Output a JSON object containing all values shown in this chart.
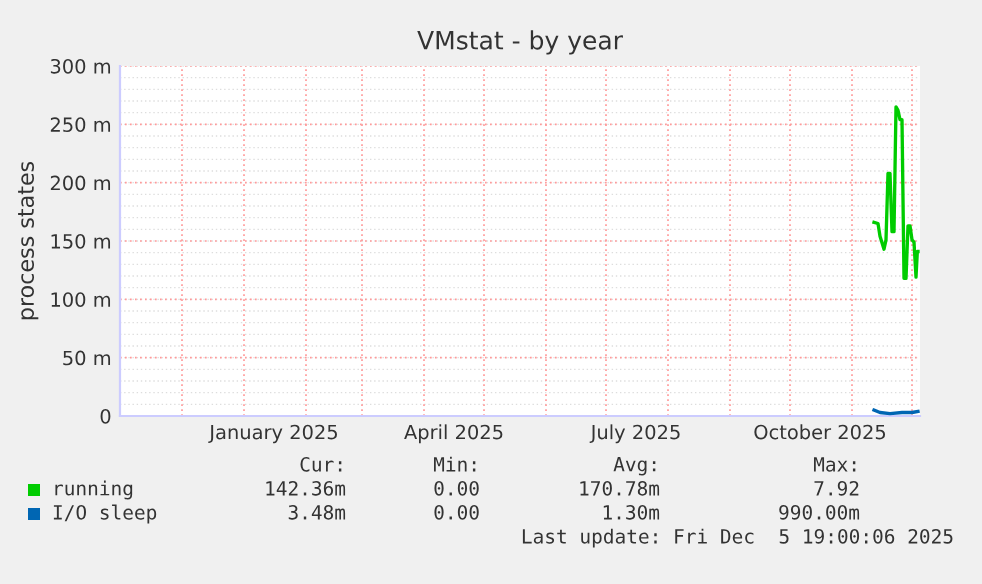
{
  "chart_data": {
    "type": "line",
    "title": "VMstat - by year",
    "ylabel": "process states",
    "xlim": [
      "2024-10-31",
      "2025-12-05"
    ],
    "xticks": [
      {
        "value": "2024-12-01",
        "label": null
      },
      {
        "value": "2025-01-01",
        "label": null
      },
      {
        "value": "2025-01-16",
        "label": "January 2025"
      },
      {
        "value": "2025-02-01",
        "label": null
      },
      {
        "value": "2025-03-01",
        "label": null
      },
      {
        "value": "2025-04-01",
        "label": null
      },
      {
        "value": "2025-04-16",
        "label": "April 2025"
      },
      {
        "value": "2025-05-01",
        "label": null
      },
      {
        "value": "2025-06-01",
        "label": null
      },
      {
        "value": "2025-07-01",
        "label": null
      },
      {
        "value": "2025-07-16",
        "label": "July 2025"
      },
      {
        "value": "2025-08-01",
        "label": null
      },
      {
        "value": "2025-09-01",
        "label": null
      },
      {
        "value": "2025-10-01",
        "label": null
      },
      {
        "value": "2025-10-16",
        "label": "October 2025"
      },
      {
        "value": "2025-11-01",
        "label": null
      },
      {
        "value": "2025-12-01",
        "label": null
      }
    ],
    "ylim": [
      0,
      300
    ],
    "yticks": [
      0,
      {
        "value": 50,
        "label": "50 m"
      },
      {
        "value": 100,
        "label": "100 m"
      },
      {
        "value": 150,
        "label": "150 m"
      },
      {
        "value": 200,
        "label": "200 m"
      },
      {
        "value": 250,
        "label": "250 m"
      },
      {
        "value": 300,
        "label": "300 m"
      }
    ],
    "grid": true,
    "legend": "bottom left",
    "series": [
      {
        "name": "running",
        "color": "#00cc00",
        "x": [
          "2025-11-12",
          "2025-11-14",
          "2025-11-15",
          "2025-11-17",
          "2025-11-18",
          "2025-11-19",
          "2025-11-20",
          "2025-11-21",
          "2025-11-22",
          "2025-11-23",
          "2025-11-24",
          "2025-11-25",
          "2025-11-26",
          "2025-11-27",
          "2025-11-28",
          "2025-11-29",
          "2025-11-30",
          "2025-12-01",
          "2025-12-02",
          "2025-12-03",
          "2025-12-03T16:00",
          "2025-12-04"
        ],
        "values": [
          166,
          165,
          154,
          143,
          151,
          208,
          208,
          158,
          158,
          265,
          262,
          254,
          254,
          118,
          118,
          163,
          163,
          151,
          149,
          119,
          141,
          141
        ]
      },
      {
        "name": "I/O sleep",
        "color": "#0066b3",
        "x": [
          "2025-11-12",
          "2025-11-15",
          "2025-11-20",
          "2025-11-26",
          "2025-12-01",
          "2025-12-04"
        ],
        "values": [
          5,
          3,
          2,
          3,
          3,
          4
        ]
      }
    ],
    "annotations": [
      "Cur:",
      "Min:",
      "Avg:",
      "Max:",
      "142.36m",
      "0.00",
      "170.78m",
      "7.92",
      "3.48m",
      "0.00",
      "1.30m",
      "990.00m",
      "Last update: Fri Dec  5 19:00:06 2025"
    ]
  }
}
